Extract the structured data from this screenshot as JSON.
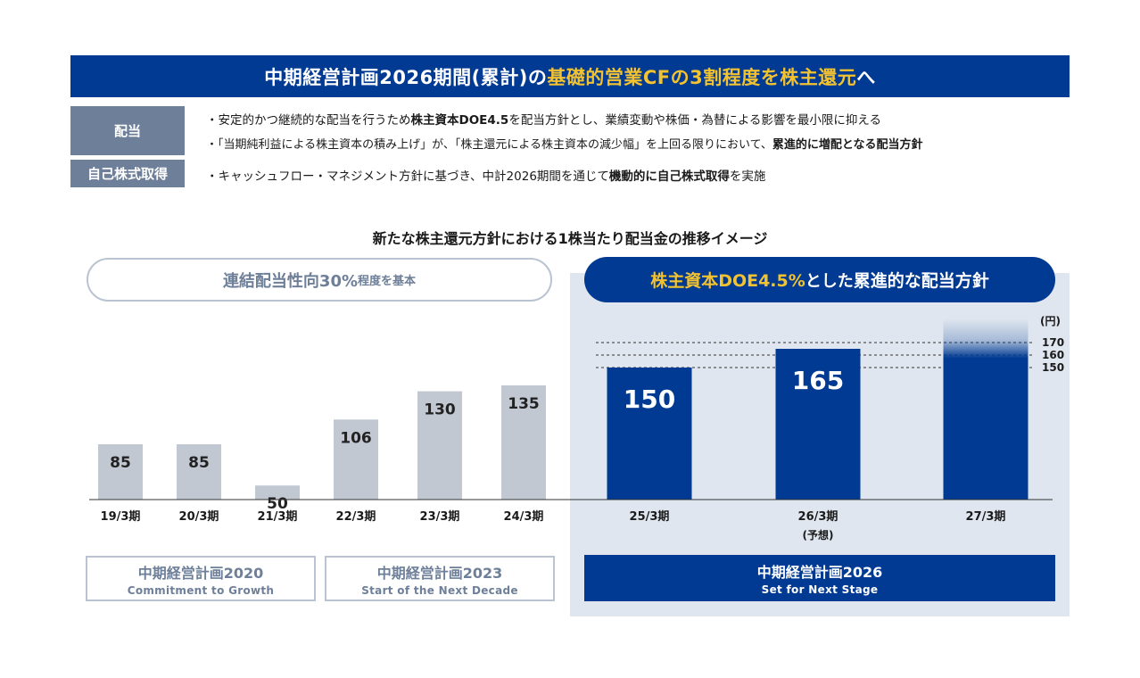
{
  "banner": {
    "part1": "中期経営計画2026期間(累計)の",
    "part2": "基礎的営業CFの3割程度を株主還元",
    "part3": "へ"
  },
  "policies": {
    "dividend_tag": "配当",
    "buyback_tag": "自己株式取得",
    "line1": {
      "a": "・安定的かつ継続的な配当を行うため",
      "b": "株主資本DOE4.5",
      "c": "を配当方針とし、業績変動や株価・為替による影響を最小限に抑える"
    },
    "line2": {
      "a": "・「当期純利益による株主資本の積み上げ」が、「株主還元による株主資本の減少幅」を上回る限りにおいて、",
      "b": "累進的に増配となる配当方針"
    },
    "line3": {
      "a": "・キャッシュフロー・マネジメント方針に基づき、中計2026期間を通じて",
      "b": "機動的に自己株式取得",
      "c": "を実施"
    }
  },
  "chart_title": "新たな株主還元方針における1株当たり配当金の推移イメージ",
  "left_pill": {
    "main": "連結配当性向30%",
    "small": "程度を基本"
  },
  "right_pill": {
    "hl": "株主資本DOE4.5%",
    "small": "とした",
    "main": "累進的な配当方針"
  },
  "chart_data": {
    "type": "bar",
    "title": "新たな株主還元方針における1株当たり配当金の推移イメージ",
    "unit": "(円)",
    "categories": [
      "19/3期",
      "20/3期",
      "21/3期",
      "22/3期",
      "23/3期",
      "24/3期",
      "25/3期",
      "26/3期",
      "27/3期"
    ],
    "category_notes": [
      "",
      "",
      "",
      "",
      "",
      "",
      "",
      "(予想)",
      ""
    ],
    "values": [
      85,
      85,
      50,
      106,
      130,
      135,
      150,
      165,
      170
    ],
    "labels": [
      "85",
      "85",
      "50",
      "106",
      "130",
      "135",
      "150",
      "165",
      ""
    ],
    "series_style": [
      "past",
      "past",
      "past",
      "past",
      "past",
      "past",
      "plan",
      "plan",
      "plan-gradient"
    ],
    "reference_lines": [
      170,
      160,
      150
    ],
    "reference_labels": [
      "170",
      "160",
      "150"
    ],
    "ylim": [
      0,
      180
    ]
  },
  "plans": [
    {
      "name": "中期経営計画2020",
      "sub": "Commitment to Growth"
    },
    {
      "name": "中期経営計画2023",
      "sub": "Start of the Next Decade"
    },
    {
      "name": "中期経営計画2026",
      "sub": "Set for Next Stage"
    }
  ],
  "colors": {
    "navy": "#003a92",
    "gold": "#f2c230",
    "grey_bar": "#c2c8d2",
    "panel": "#dfe6ef",
    "tag": "#6e7f99"
  }
}
